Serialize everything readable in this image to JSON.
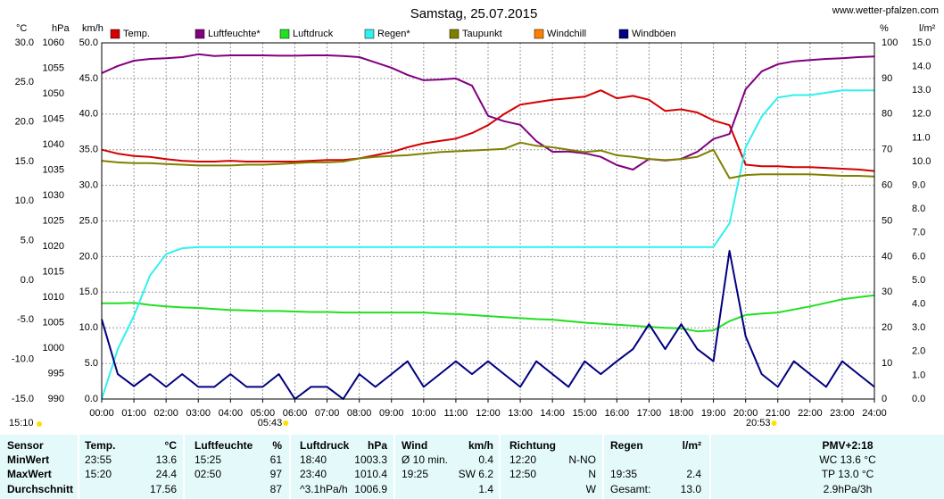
{
  "chart_data": {
    "type": "multi-axis-line",
    "title": "Samstag, 25.07.2015",
    "source": "www.wetter-pfalzen.com",
    "note": "15:10",
    "x": [
      0,
      0.5,
      1,
      1.5,
      2,
      2.5,
      3,
      3.5,
      4,
      4.5,
      5,
      5.5,
      6,
      6.5,
      7,
      7.5,
      8,
      8.5,
      9,
      9.5,
      10,
      10.5,
      11,
      11.5,
      12,
      12.5,
      13,
      13.5,
      14,
      14.5,
      15,
      15.5,
      16,
      16.5,
      17,
      17.5,
      18,
      18.5,
      19,
      19.5,
      20,
      20.5,
      21,
      21.5,
      22,
      22.5,
      23,
      23.5,
      24
    ],
    "xlim": [
      0,
      24
    ],
    "xticks": [
      {
        "value": 0,
        "label": "00:00"
      },
      {
        "value": 1,
        "label": "01:00"
      },
      {
        "value": 2,
        "label": "02:00"
      },
      {
        "value": 3,
        "label": "03:00"
      },
      {
        "value": 4,
        "label": "04:00"
      },
      {
        "value": 5,
        "label": "05:00"
      },
      {
        "value": 6,
        "label": "06:00"
      },
      {
        "value": 7,
        "label": "07:00"
      },
      {
        "value": 8,
        "label": "08:00"
      },
      {
        "value": 9,
        "label": "09:00"
      },
      {
        "value": 10,
        "label": "10:00"
      },
      {
        "value": 11,
        "label": "11:00"
      },
      {
        "value": 12,
        "label": "12:00"
      },
      {
        "value": 13,
        "label": "13:00"
      },
      {
        "value": 14,
        "label": "14:00"
      },
      {
        "value": 15,
        "label": "15:00"
      },
      {
        "value": 16,
        "label": "16:00"
      },
      {
        "value": 17,
        "label": "17:00"
      },
      {
        "value": 18,
        "label": "18:00"
      },
      {
        "value": 19,
        "label": "19:00"
      },
      {
        "value": 20,
        "label": "20:00"
      },
      {
        "value": 21,
        "label": "21:00"
      },
      {
        "value": 22,
        "label": "22:00"
      },
      {
        "value": 23,
        "label": "23:00"
      },
      {
        "value": 24,
        "label": "24:00"
      }
    ],
    "grid": true,
    "y_axes": [
      {
        "label": "°C",
        "color": "#d00000",
        "lim": [
          -15,
          30
        ],
        "ticks": [
          {
            "value": -15,
            "label": "-15.0"
          },
          {
            "value": -10,
            "label": "-10.0"
          },
          {
            "value": -5,
            "label": "-5.0"
          },
          {
            "value": 0,
            "label": "0.0"
          },
          {
            "value": 5,
            "label": "5.0"
          },
          {
            "value": 10,
            "label": "10.0"
          },
          {
            "value": 15,
            "label": "15.0"
          },
          {
            "value": 20,
            "label": "20.0"
          },
          {
            "value": 25,
            "label": "25.0"
          },
          {
            "value": 30,
            "label": "30.0"
          }
        ]
      },
      {
        "label": "hPa",
        "color": "#00a000",
        "lim": [
          990,
          1060
        ],
        "ticks": [
          990,
          995,
          1000,
          1005,
          1010,
          1015,
          1020,
          1025,
          1030,
          1035,
          1040,
          1045,
          1050,
          1055,
          1060
        ]
      },
      {
        "label": "km/h",
        "color": "#000040",
        "lim": [
          0,
          50
        ],
        "ticks": [
          {
            "value": 0,
            "label": "0.0"
          },
          {
            "value": 5,
            "label": "5.0"
          },
          {
            "value": 10,
            "label": "10.0"
          },
          {
            "value": 15,
            "label": "15.0"
          },
          {
            "value": 20,
            "label": "20.0"
          },
          {
            "value": 25,
            "label": "25.0"
          },
          {
            "value": 30,
            "label": "30.0"
          },
          {
            "value": 35,
            "label": "35.0"
          },
          {
            "value": 40,
            "label": "40.0"
          },
          {
            "value": 45,
            "label": "45.0"
          },
          {
            "value": 50,
            "label": "50.0"
          }
        ]
      },
      {
        "label": "%",
        "color": "#600060",
        "lim": [
          0,
          100
        ],
        "ticks": [
          0,
          10,
          20,
          30,
          40,
          50,
          60,
          70,
          80,
          90,
          100
        ]
      },
      {
        "label": "l/m²",
        "color": "#00c8c8",
        "lim": [
          0,
          15
        ],
        "ticks": [
          {
            "value": 0,
            "label": "0.0"
          },
          {
            "value": 1,
            "label": "1.0"
          },
          {
            "value": 2,
            "label": "2.0"
          },
          {
            "value": 3,
            "label": "3.0"
          },
          {
            "value": 4,
            "label": "4.0"
          },
          {
            "value": 5,
            "label": "5.0"
          },
          {
            "value": 6,
            "label": "6.0"
          },
          {
            "value": 7,
            "label": "7.0"
          },
          {
            "value": 8,
            "label": "8.0"
          },
          {
            "value": 9,
            "label": "9.0"
          },
          {
            "value": 10,
            "label": "10.0"
          },
          {
            "value": 11,
            "label": "11.0"
          },
          {
            "value": 12,
            "label": "12.0"
          },
          {
            "value": 13,
            "label": "13.0"
          },
          {
            "value": 14,
            "label": "14.0"
          },
          {
            "value": 15,
            "label": "15.0"
          }
        ]
      }
    ],
    "grid_axis": 2,
    "series": [
      {
        "name": "Temp.",
        "color": "#d40000",
        "axis": 0,
        "values": [
          16.5,
          16.0,
          15.7,
          15.6,
          15.3,
          15.1,
          15.0,
          15.0,
          15.1,
          15.0,
          15.0,
          15.0,
          15.0,
          15.1,
          15.2,
          15.2,
          15.4,
          15.8,
          16.2,
          16.8,
          17.3,
          17.6,
          17.9,
          18.6,
          19.6,
          21.0,
          22.2,
          22.5,
          22.8,
          23.0,
          23.2,
          24.0,
          23.0,
          23.3,
          22.8,
          21.4,
          21.6,
          21.2,
          20.2,
          19.6,
          14.6,
          14.4,
          14.4,
          14.3,
          14.3,
          14.2,
          14.1,
          14.0,
          13.8
        ]
      },
      {
        "name": "Luftfeuchte*",
        "color": "#800080",
        "axis": 3,
        "values": [
          91.5,
          93.5,
          95,
          95.5,
          95.7,
          96,
          96.8,
          96.3,
          96.5,
          96.5,
          96.5,
          96.4,
          96.4,
          96.5,
          96.5,
          96.3,
          96,
          94.5,
          93,
          91,
          89.5,
          89.7,
          90,
          88,
          79.5,
          78,
          77,
          72.4,
          69.4,
          69.5,
          69,
          68,
          65.7,
          64.4,
          67.4,
          67,
          67.4,
          69.4,
          73,
          74.4,
          87,
          92,
          94,
          94.8,
          95.2,
          95.5,
          95.7,
          96,
          96.2
        ]
      },
      {
        "name": "Luftdruck",
        "color": "#20e020",
        "axis": 1,
        "values": [
          1008.8,
          1008.8,
          1008.9,
          1008.5,
          1008.2,
          1008.0,
          1007.9,
          1007.7,
          1007.5,
          1007.4,
          1007.3,
          1007.3,
          1007.2,
          1007.1,
          1007.1,
          1007.0,
          1007.0,
          1007.0,
          1007.0,
          1007.0,
          1007.0,
          1006.8,
          1006.7,
          1006.5,
          1006.3,
          1006.1,
          1005.9,
          1005.7,
          1005.6,
          1005.3,
          1005.0,
          1004.8,
          1004.6,
          1004.4,
          1004.2,
          1004.0,
          1003.9,
          1003.3,
          1003.5,
          1005.3,
          1006.5,
          1006.8,
          1007.0,
          1007.6,
          1008.2,
          1008.9,
          1009.6,
          1010.0,
          1010.4
        ]
      },
      {
        "name": "Regen*",
        "color": "#30f0f0",
        "axis": 4,
        "values": [
          0,
          2.1,
          3.5,
          5.2,
          6.1,
          6.35,
          6.4,
          6.4,
          6.4,
          6.4,
          6.4,
          6.4,
          6.4,
          6.4,
          6.4,
          6.4,
          6.4,
          6.4,
          6.4,
          6.4,
          6.4,
          6.4,
          6.4,
          6.4,
          6.4,
          6.4,
          6.4,
          6.4,
          6.4,
          6.4,
          6.4,
          6.4,
          6.4,
          6.4,
          6.4,
          6.4,
          6.4,
          6.4,
          6.4,
          7.4,
          10.6,
          11.9,
          12.7,
          12.8,
          12.8,
          12.9,
          13.0,
          13.0,
          13.0
        ]
      },
      {
        "name": "Taupunkt",
        "color": "#808000",
        "axis": 0,
        "values": [
          15.1,
          14.9,
          14.8,
          14.8,
          14.7,
          14.6,
          14.5,
          14.5,
          14.5,
          14.6,
          14.6,
          14.7,
          14.8,
          14.9,
          14.9,
          15.0,
          15.4,
          15.6,
          15.7,
          15.8,
          16.0,
          16.2,
          16.3,
          16.4,
          16.5,
          16.6,
          17.4,
          17.0,
          16.8,
          16.5,
          16.2,
          16.4,
          15.8,
          15.6,
          15.3,
          15.2,
          15.3,
          15.6,
          16.5,
          12.9,
          13.3,
          13.4,
          13.4,
          13.4,
          13.4,
          13.3,
          13.2,
          13.2,
          13.1
        ]
      },
      {
        "name": "Windchill",
        "color": "#ff8000",
        "axis": 0,
        "values": [
          null,
          null,
          null,
          null,
          null,
          null,
          null,
          null,
          null,
          null,
          null,
          null,
          null,
          null,
          null,
          null,
          null,
          null,
          null,
          null,
          null,
          null,
          null,
          null,
          null,
          null,
          null,
          null,
          null,
          null,
          null,
          null,
          null,
          null,
          null,
          null,
          null,
          null,
          null,
          null,
          null,
          null,
          null,
          null,
          null,
          null,
          null,
          null,
          null
        ]
      },
      {
        "name": "Windböen",
        "color": "#000080",
        "axis": 2,
        "values": [
          11.2,
          3.5,
          1.8,
          3.5,
          1.7,
          3.5,
          1.7,
          1.7,
          3.5,
          1.7,
          1.7,
          3.5,
          0,
          1.7,
          1.7,
          0,
          3.5,
          1.7,
          3.5,
          5.3,
          1.7,
          3.5,
          5.3,
          3.5,
          5.3,
          3.5,
          1.7,
          5.3,
          3.5,
          1.7,
          5.3,
          3.5,
          5.3,
          7,
          10.5,
          7,
          10.5,
          7,
          5.3,
          20.8,
          8.8,
          3.5,
          1.7,
          5.3,
          3.5,
          1.7,
          5.3,
          3.5,
          1.7
        ]
      }
    ],
    "annotations": [
      {
        "x": 5.717,
        "label": "05:43"
      },
      {
        "x": 20.883,
        "label": "20:53"
      }
    ]
  },
  "table": {
    "header": [
      "Sensor",
      "Temp.",
      "°C",
      "Luftfeuchte",
      "%",
      "Luftdruck",
      "hPa",
      "Wind",
      "km/h",
      "Richtung",
      null,
      "Regen",
      "l/m²",
      "PMV+2:18"
    ],
    "rows": [
      [
        "MinWert",
        "23:55",
        "13.6",
        "15:25",
        "61",
        "18:40",
        "1003.3",
        "Ø 10 min.",
        "0.4",
        "12:20",
        "N-NO",
        null,
        null,
        "WC 13.6 °C"
      ],
      [
        "MaxWert",
        "15:20",
        "24.4",
        "02:50",
        "97",
        "23:40",
        "1010.4",
        "19:25",
        "SW 6.2",
        "12:50",
        "N",
        "19:35",
        "2.4",
        "TP 13.0 °C"
      ],
      [
        "Durchschnitt",
        null,
        "17.56",
        null,
        "87",
        "^3.1hPa/h",
        "1006.9",
        null,
        "1.4",
        null,
        "W",
        "Gesamt:",
        "13.0",
        "2.9hPa/3h"
      ]
    ]
  }
}
